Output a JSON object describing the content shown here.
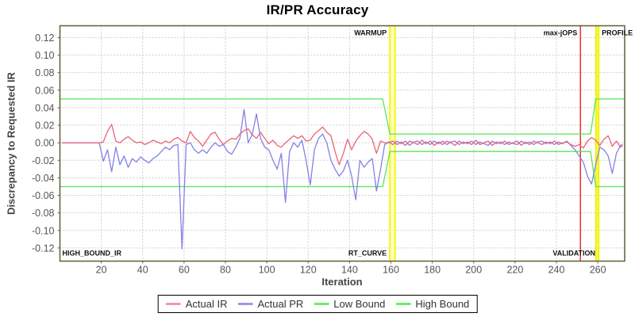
{
  "title": "IR/PR Accuracy",
  "chart_data": {
    "type": "line",
    "title": "IR/PR Accuracy",
    "xlabel": "Iteration",
    "ylabel": "Discrepancy to Requested IR",
    "xlim": [
      0,
      273
    ],
    "ylim": [
      -0.135,
      0.1335
    ],
    "x_ticks": [
      20,
      40,
      60,
      80,
      100,
      120,
      140,
      160,
      180,
      200,
      220,
      240,
      260
    ],
    "y_ticks": [
      0.12,
      0.1,
      0.08,
      0.06,
      0.04,
      0.02,
      0.0,
      -0.02,
      -0.04,
      -0.06,
      -0.08,
      -0.1,
      -0.12
    ],
    "grid": true,
    "legend_position": "bottom",
    "series": [
      {
        "name": "Actual IR",
        "color": "#e8647a",
        "points": [
          [
            1,
            0
          ],
          [
            3,
            0
          ],
          [
            5,
            0
          ],
          [
            7,
            0
          ],
          [
            9,
            0
          ],
          [
            11,
            0
          ],
          [
            13,
            0
          ],
          [
            15,
            0
          ],
          [
            17,
            0
          ],
          [
            19,
            0
          ],
          [
            21,
            0.001
          ],
          [
            23,
            0.013
          ],
          [
            25,
            0.021
          ],
          [
            27,
            0.002
          ],
          [
            29,
            0
          ],
          [
            31,
            0.004
          ],
          [
            33,
            0.007
          ],
          [
            35,
            0.003
          ],
          [
            37,
            0
          ],
          [
            39,
            0.001
          ],
          [
            41,
            -0.002
          ],
          [
            43,
            0
          ],
          [
            45,
            0.003
          ],
          [
            47,
            0.001
          ],
          [
            49,
            -0.001
          ],
          [
            51,
            0.002
          ],
          [
            53,
            0
          ],
          [
            55,
            0.004
          ],
          [
            57,
            0.006
          ],
          [
            59,
            0.002
          ],
          [
            61,
            0
          ],
          [
            63,
            0.013
          ],
          [
            65,
            0.006
          ],
          [
            67,
            0.002
          ],
          [
            69,
            -0.004
          ],
          [
            71,
            0.003
          ],
          [
            73,
            0.01
          ],
          [
            75,
            0.012
          ],
          [
            77,
            0.004
          ],
          [
            79,
            -0.002
          ],
          [
            81,
            0.002
          ],
          [
            83,
            0.005
          ],
          [
            85,
            0.004
          ],
          [
            87,
            0.01
          ],
          [
            89,
            0.014
          ],
          [
            91,
            0.016
          ],
          [
            93,
            0.009
          ],
          [
            95,
            0.005
          ],
          [
            97,
            0.012
          ],
          [
            99,
            0.005
          ],
          [
            101,
            -0.001
          ],
          [
            103,
            0.003
          ],
          [
            105,
            -0.003
          ],
          [
            107,
            -0.005
          ],
          [
            109,
            0
          ],
          [
            111,
            0.004
          ],
          [
            113,
            0.008
          ],
          [
            115,
            0.005
          ],
          [
            117,
            0.008
          ],
          [
            119,
            0.002
          ],
          [
            121,
            0.003
          ],
          [
            123,
            0.01
          ],
          [
            125,
            0.014
          ],
          [
            127,
            0.018
          ],
          [
            129,
            0.012
          ],
          [
            131,
            0.008
          ],
          [
            133,
            -0.01
          ],
          [
            135,
            -0.025
          ],
          [
            137,
            -0.012
          ],
          [
            139,
            0.004
          ],
          [
            141,
            -0.008
          ],
          [
            143,
            0.002
          ],
          [
            145,
            0.008
          ],
          [
            147,
            0.013
          ],
          [
            149,
            0.01
          ],
          [
            151,
            0.004
          ],
          [
            153,
            -0.012
          ],
          [
            155,
            0.002
          ],
          [
            157,
            0
          ],
          [
            159,
            0
          ],
          [
            161,
            0.002
          ],
          [
            163,
            -0.002
          ],
          [
            165,
            0.001
          ],
          [
            167,
            -0.003
          ],
          [
            169,
            0.002
          ],
          [
            171,
            0
          ],
          [
            173,
            -0.002
          ],
          [
            175,
            0.003
          ],
          [
            177,
            -0.001
          ],
          [
            179,
            0.002
          ],
          [
            181,
            -0.003
          ],
          [
            183,
            0.001
          ],
          [
            185,
            -0.002
          ],
          [
            187,
            0.002
          ],
          [
            189,
            0
          ],
          [
            191,
            -0.003
          ],
          [
            193,
            0.002
          ],
          [
            195,
            -0.001
          ],
          [
            197,
            0.001
          ],
          [
            199,
            -0.002
          ],
          [
            201,
            0.003
          ],
          [
            203,
            -0.002
          ],
          [
            205,
            0
          ],
          [
            207,
            0.002
          ],
          [
            209,
            -0.003
          ],
          [
            211,
            0.001
          ],
          [
            213,
            -0.001
          ],
          [
            215,
            0.002
          ],
          [
            217,
            -0.002
          ],
          [
            219,
            0
          ],
          [
            221,
            0.002
          ],
          [
            223,
            -0.003
          ],
          [
            225,
            0.001
          ],
          [
            227,
            -0.002
          ],
          [
            229,
            0.002
          ],
          [
            231,
            0
          ],
          [
            233,
            -0.002
          ],
          [
            235,
            0.001
          ],
          [
            237,
            -0.001
          ],
          [
            239,
            0.002
          ],
          [
            241,
            -0.002
          ],
          [
            243,
            0
          ],
          [
            245,
            0.001
          ],
          [
            247,
            -0.002
          ],
          [
            249,
            -0.004
          ],
          [
            251,
            -0.002
          ],
          [
            253,
            -0.006
          ],
          [
            255,
            0.002
          ],
          [
            257,
            0.006
          ],
          [
            259,
            0.003
          ],
          [
            261,
            -0.003
          ],
          [
            263,
            0.004
          ],
          [
            265,
            0.008
          ],
          [
            267,
            -0.004
          ],
          [
            269,
            0.002
          ],
          [
            271,
            -0.005
          ],
          [
            272,
            -0.003
          ]
        ]
      },
      {
        "name": "Actual PR",
        "color": "#8282e8",
        "points": [
          [
            1,
            0
          ],
          [
            3,
            0
          ],
          [
            5,
            0
          ],
          [
            7,
            0
          ],
          [
            9,
            0
          ],
          [
            11,
            0
          ],
          [
            13,
            0
          ],
          [
            15,
            0
          ],
          [
            17,
            0
          ],
          [
            19,
            0
          ],
          [
            21,
            -0.021
          ],
          [
            23,
            -0.008
          ],
          [
            25,
            -0.033
          ],
          [
            27,
            -0.005
          ],
          [
            29,
            -0.025
          ],
          [
            31,
            -0.015
          ],
          [
            33,
            -0.028
          ],
          [
            35,
            -0.018
          ],
          [
            37,
            -0.022
          ],
          [
            39,
            -0.016
          ],
          [
            41,
            -0.02
          ],
          [
            43,
            -0.023
          ],
          [
            45,
            -0.018
          ],
          [
            47,
            -0.015
          ],
          [
            49,
            -0.01
          ],
          [
            51,
            -0.005
          ],
          [
            53,
            -0.008
          ],
          [
            55,
            -0.003
          ],
          [
            57,
            -0.002
          ],
          [
            59,
            -0.121
          ],
          [
            61,
            -0.002
          ],
          [
            63,
            0
          ],
          [
            65,
            -0.008
          ],
          [
            67,
            -0.012
          ],
          [
            69,
            -0.008
          ],
          [
            71,
            -0.012
          ],
          [
            73,
            -0.005
          ],
          [
            75,
            0
          ],
          [
            77,
            -0.004
          ],
          [
            79,
            -0.002
          ],
          [
            81,
            -0.01
          ],
          [
            83,
            -0.013
          ],
          [
            85,
            -0.005
          ],
          [
            87,
            0.005
          ],
          [
            89,
            0.038
          ],
          [
            91,
            0
          ],
          [
            93,
            0.01
          ],
          [
            95,
            0.033
          ],
          [
            97,
            0.005
          ],
          [
            99,
            -0.005
          ],
          [
            101,
            -0.008
          ],
          [
            103,
            -0.02
          ],
          [
            105,
            -0.03
          ],
          [
            107,
            -0.012
          ],
          [
            109,
            -0.068
          ],
          [
            111,
            -0.01
          ],
          [
            113,
            0
          ],
          [
            115,
            -0.005
          ],
          [
            117,
            0.003
          ],
          [
            119,
            -0.02
          ],
          [
            121,
            -0.048
          ],
          [
            123,
            -0.008
          ],
          [
            125,
            0.005
          ],
          [
            127,
            0.01
          ],
          [
            129,
            0
          ],
          [
            131,
            -0.02
          ],
          [
            133,
            -0.03
          ],
          [
            135,
            -0.038
          ],
          [
            137,
            -0.032
          ],
          [
            139,
            -0.02
          ],
          [
            141,
            -0.038
          ],
          [
            143,
            -0.065
          ],
          [
            145,
            -0.02
          ],
          [
            147,
            -0.028
          ],
          [
            149,
            -0.022
          ],
          [
            151,
            -0.018
          ],
          [
            153,
            -0.055
          ],
          [
            155,
            -0.03
          ],
          [
            157,
            -0.002
          ],
          [
            159,
            0.001
          ],
          [
            161,
            -0.002
          ],
          [
            163,
            0.002
          ],
          [
            165,
            -0.001
          ],
          [
            167,
            0.002
          ],
          [
            169,
            -0.003
          ],
          [
            171,
            0.001
          ],
          [
            173,
            0.002
          ],
          [
            175,
            -0.002
          ],
          [
            177,
            0.001
          ],
          [
            179,
            -0.002
          ],
          [
            181,
            0.002
          ],
          [
            183,
            -0.001
          ],
          [
            185,
            0.002
          ],
          [
            187,
            -0.002
          ],
          [
            189,
            0.001
          ],
          [
            191,
            0.002
          ],
          [
            193,
            -0.002
          ],
          [
            195,
            0.001
          ],
          [
            197,
            -0.001
          ],
          [
            199,
            0.002
          ],
          [
            201,
            -0.002
          ],
          [
            203,
            0.001
          ],
          [
            205,
            -0.001
          ],
          [
            207,
            -0.003
          ],
          [
            209,
            0.002
          ],
          [
            211,
            -0.001
          ],
          [
            213,
            0.001
          ],
          [
            215,
            -0.002
          ],
          [
            217,
            0.001
          ],
          [
            219,
            -0.001
          ],
          [
            221,
            -0.002
          ],
          [
            223,
            0.002
          ],
          [
            225,
            -0.001
          ],
          [
            227,
            0.001
          ],
          [
            229,
            -0.002
          ],
          [
            231,
            0.001
          ],
          [
            233,
            0.002
          ],
          [
            235,
            -0.001
          ],
          [
            237,
            0.001
          ],
          [
            239,
            -0.002
          ],
          [
            241,
            0.001
          ],
          [
            243,
            -0.001
          ],
          [
            245,
            0.002
          ],
          [
            247,
            -0.003
          ],
          [
            249,
            -0.008
          ],
          [
            251,
            -0.015
          ],
          [
            253,
            -0.022
          ],
          [
            255,
            -0.038
          ],
          [
            257,
            -0.047
          ],
          [
            259,
            -0.025
          ],
          [
            261,
            -0.005
          ],
          [
            263,
            -0.008
          ],
          [
            265,
            -0.015
          ],
          [
            267,
            -0.035
          ],
          [
            269,
            -0.012
          ],
          [
            271,
            -0.003
          ],
          [
            272,
            -0.002
          ]
        ]
      },
      {
        "name": "Low Bound",
        "color": "#55e855",
        "points": [
          [
            0,
            -0.05
          ],
          [
            156,
            -0.05
          ],
          [
            159.5,
            -0.01
          ],
          [
            256.5,
            -0.01
          ],
          [
            259,
            -0.05
          ],
          [
            273,
            -0.05
          ]
        ]
      },
      {
        "name": "High Bound",
        "color": "#55e855",
        "points": [
          [
            0,
            0.05
          ],
          [
            156,
            0.05
          ],
          [
            159.5,
            0.01
          ],
          [
            256.5,
            0.01
          ],
          [
            259,
            0.05
          ],
          [
            273,
            0.05
          ]
        ]
      }
    ],
    "markers": {
      "bands": [
        {
          "x1": 159.5,
          "x2": 162.0,
          "fill": "#ffffbb",
          "edge": "#f4f420",
          "label_top": "WARMUP",
          "label_bottom": "RT_CURVE",
          "label_anchor": "end"
        },
        {
          "x1": 259.1,
          "x2": 260.4,
          "fill": "#ffff44",
          "edge": "#eeee18",
          "label_top": "PROFILE",
          "label_bottom": "",
          "label_anchor": "start"
        }
      ],
      "lines": [
        {
          "x": 251.6,
          "color": "#ee2222",
          "label_top": "max-jOPS",
          "label_bottom": "VALIDATION"
        }
      ],
      "corner_label": "HIGH_BOUND_IR"
    }
  },
  "legend": {
    "items": [
      {
        "label": "Actual IR",
        "color": "#f09aa4"
      },
      {
        "label": "Actual PR",
        "color": "#9a9aef"
      },
      {
        "label": "Low Bound",
        "color": "#6aee6a"
      },
      {
        "label": "High Bound",
        "color": "#6aee6a"
      }
    ]
  }
}
